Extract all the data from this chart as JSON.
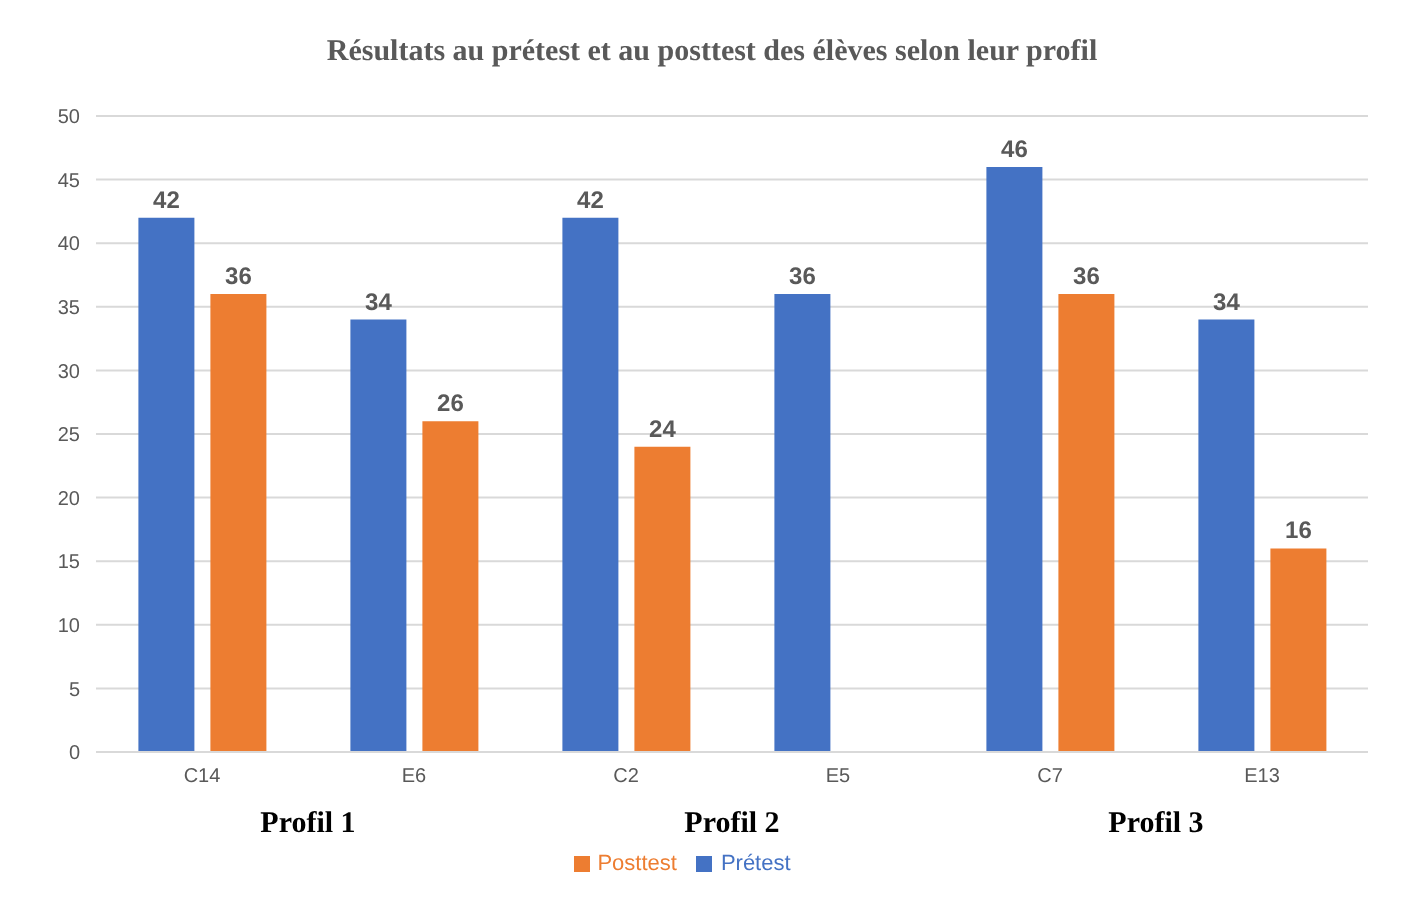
{
  "chart_data": {
    "type": "bar",
    "title": "Résultats au prétest et au posttest des élèves selon leur profil",
    "categories": [
      "C14",
      "E6",
      "C2",
      "E5",
      "C7",
      "E13"
    ],
    "series": [
      {
        "name": "Prétest",
        "color": "#4472c4",
        "values": [
          42,
          34,
          42,
          36,
          46,
          34
        ]
      },
      {
        "name": "Posttest",
        "color": "#ed7d31",
        "values": [
          36,
          26,
          24,
          null,
          36,
          16
        ]
      }
    ],
    "ylim": [
      0,
      50
    ],
    "yticks": [
      0,
      5,
      10,
      15,
      20,
      25,
      30,
      35,
      40,
      45,
      50
    ],
    "grid": "y",
    "legend": "bottom",
    "data_labels": true,
    "annotations": [
      "Profil 1",
      "Profil 2",
      "Profil 3"
    ]
  }
}
